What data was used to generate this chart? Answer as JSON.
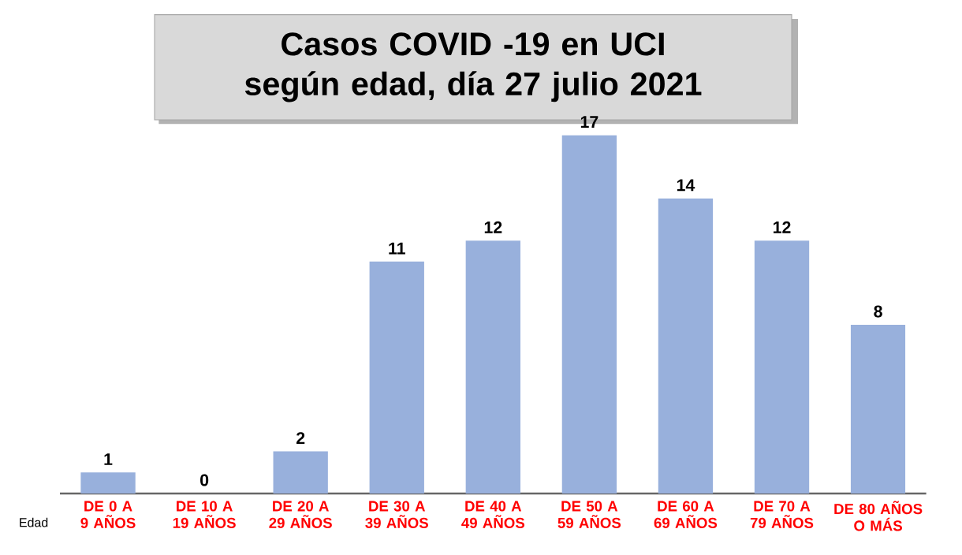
{
  "chart_data": {
    "type": "bar",
    "title": "Casos COVID -19 en UCI según edad, día 27 julio 2021",
    "xlabel": "Edad",
    "categories": [
      "DE 0 A 9 AÑOS",
      "DE 10 A 19 AÑOS",
      "DE 20 A 29 AÑOS",
      "DE 30 A 39 AÑOS",
      "DE 40 A 49 AÑOS",
      "DE 50 A 59 AÑOS",
      "DE 60 A 69 AÑOS",
      "DE 70 A 79 AÑOS",
      "DE 80 AÑOS O MÁS"
    ],
    "values": [
      1,
      0,
      2,
      11,
      12,
      17,
      14,
      12,
      8
    ],
    "color": "#98b0dc",
    "data_labels": true
  }
}
